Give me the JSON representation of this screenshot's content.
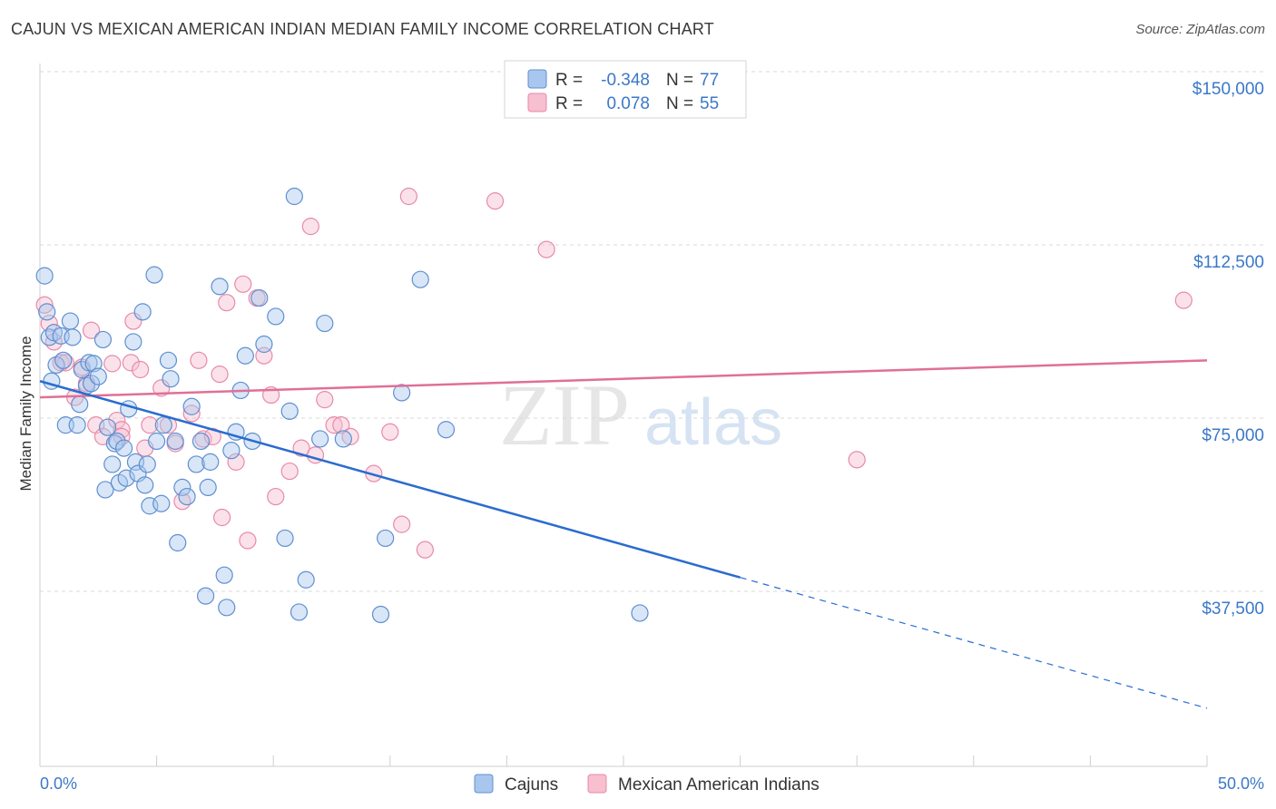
{
  "header": {
    "title": "CAJUN VS MEXICAN AMERICAN INDIAN MEDIAN FAMILY INCOME CORRELATION CHART",
    "source": "Source: ZipAtlas.com"
  },
  "watermark": {
    "zip": "ZIP",
    "atlas": "atlas"
  },
  "legend": {
    "r_label": "R =",
    "n_label": "N =",
    "cajun": {
      "r": "-0.348",
      "n": "77"
    },
    "mexican": {
      "r": "0.078",
      "n": "55"
    }
  },
  "bottom_legend": {
    "cajun": "Cajuns",
    "mexican": "Mexican American Indians"
  },
  "colors": {
    "cajun_fill": "#a9c7ee",
    "cajun_stroke": "#5f8fd0",
    "cajun_line": "#2a6ccf",
    "mexican_fill": "#f7bfd0",
    "mexican_stroke": "#e88aa8",
    "mexican_line": "#e07095",
    "axis_label": "#3b78c9",
    "grid": "#d8d8d8"
  },
  "chart_data": {
    "type": "scatter",
    "title": "CAJUN VS MEXICAN AMERICAN INDIAN MEDIAN FAMILY INCOME CORRELATION CHART",
    "ylabel": "Median Family Income",
    "x_tick_labels": [
      "0.0%",
      "50.0%"
    ],
    "y_tick_labels": [
      "$150,000",
      "$112,500",
      "$75,000",
      "$37,500"
    ],
    "y_ticks": [
      150000,
      112500,
      75000,
      37500
    ],
    "xlim": [
      0,
      50
    ],
    "ylim": [
      0,
      155000
    ],
    "grid": true,
    "series": [
      {
        "name": "Cajuns",
        "points": [
          [
            0.2,
            105800
          ],
          [
            0.3,
            98000
          ],
          [
            0.4,
            92500
          ],
          [
            0.5,
            83000
          ],
          [
            0.6,
            93500
          ],
          [
            0.7,
            86500
          ],
          [
            0.9,
            92800
          ],
          [
            1.0,
            87500
          ],
          [
            1.1,
            73500
          ],
          [
            1.3,
            96000
          ],
          [
            1.4,
            92500
          ],
          [
            1.6,
            73500
          ],
          [
            1.7,
            78000
          ],
          [
            1.8,
            85500
          ],
          [
            2.0,
            82000
          ],
          [
            2.1,
            87000
          ],
          [
            2.2,
            82500
          ],
          [
            2.3,
            86800
          ],
          [
            2.5,
            84000
          ],
          [
            2.7,
            92000
          ],
          [
            2.8,
            59500
          ],
          [
            2.9,
            73000
          ],
          [
            3.1,
            65000
          ],
          [
            3.2,
            69500
          ],
          [
            3.3,
            70000
          ],
          [
            3.4,
            61000
          ],
          [
            3.6,
            68500
          ],
          [
            3.7,
            62000
          ],
          [
            3.8,
            77000
          ],
          [
            4.0,
            91500
          ],
          [
            4.1,
            65500
          ],
          [
            4.2,
            63000
          ],
          [
            4.4,
            98000
          ],
          [
            4.5,
            60500
          ],
          [
            4.6,
            65000
          ],
          [
            4.7,
            56000
          ],
          [
            4.9,
            106000
          ],
          [
            5.0,
            70000
          ],
          [
            5.2,
            56500
          ],
          [
            5.3,
            73500
          ],
          [
            5.5,
            87500
          ],
          [
            5.6,
            83500
          ],
          [
            5.8,
            70000
          ],
          [
            5.9,
            48000
          ],
          [
            6.1,
            60000
          ],
          [
            6.3,
            58000
          ],
          [
            6.5,
            77500
          ],
          [
            6.7,
            65000
          ],
          [
            6.9,
            70000
          ],
          [
            7.1,
            36500
          ],
          [
            7.2,
            60000
          ],
          [
            7.3,
            65500
          ],
          [
            7.7,
            103500
          ],
          [
            7.9,
            41000
          ],
          [
            8.0,
            34000
          ],
          [
            8.2,
            68000
          ],
          [
            8.4,
            72000
          ],
          [
            8.6,
            81000
          ],
          [
            8.8,
            88500
          ],
          [
            9.1,
            70000
          ],
          [
            9.4,
            101000
          ],
          [
            9.6,
            91000
          ],
          [
            10.1,
            97000
          ],
          [
            10.5,
            49000
          ],
          [
            10.7,
            76500
          ],
          [
            10.9,
            123000
          ],
          [
            11.1,
            33000
          ],
          [
            11.4,
            40000
          ],
          [
            12.0,
            70500
          ],
          [
            12.2,
            95500
          ],
          [
            13.0,
            70500
          ],
          [
            14.6,
            32500
          ],
          [
            14.8,
            49000
          ],
          [
            15.5,
            80500
          ],
          [
            16.3,
            105000
          ],
          [
            17.4,
            72500
          ],
          [
            25.7,
            32800
          ]
        ]
      },
      {
        "name": "Mexican American Indians",
        "points": [
          [
            0.2,
            99500
          ],
          [
            0.4,
            95500
          ],
          [
            0.6,
            91500
          ],
          [
            0.9,
            87000
          ],
          [
            1.1,
            87000
          ],
          [
            1.5,
            79500
          ],
          [
            1.8,
            86000
          ],
          [
            2.0,
            82500
          ],
          [
            2.2,
            94000
          ],
          [
            2.4,
            73500
          ],
          [
            2.7,
            71000
          ],
          [
            3.1,
            86800
          ],
          [
            3.3,
            74500
          ],
          [
            3.5,
            72500
          ],
          [
            3.9,
            87000
          ],
          [
            4.0,
            96000
          ],
          [
            4.3,
            85500
          ],
          [
            4.5,
            68500
          ],
          [
            4.7,
            73500
          ],
          [
            5.2,
            81500
          ],
          [
            5.5,
            73500
          ],
          [
            5.8,
            69500
          ],
          [
            6.1,
            57000
          ],
          [
            6.5,
            76000
          ],
          [
            6.8,
            87500
          ],
          [
            7.0,
            70500
          ],
          [
            7.4,
            71000
          ],
          [
            7.7,
            84500
          ],
          [
            7.8,
            53500
          ],
          [
            8.0,
            100000
          ],
          [
            8.4,
            65500
          ],
          [
            8.7,
            104000
          ],
          [
            8.9,
            48500
          ],
          [
            9.3,
            101000
          ],
          [
            9.6,
            88500
          ],
          [
            9.9,
            80000
          ],
          [
            10.1,
            58000
          ],
          [
            10.7,
            63500
          ],
          [
            11.2,
            68500
          ],
          [
            11.6,
            116500
          ],
          [
            11.8,
            67000
          ],
          [
            12.2,
            79000
          ],
          [
            12.6,
            73500
          ],
          [
            12.9,
            73500
          ],
          [
            13.3,
            71000
          ],
          [
            14.3,
            63000
          ],
          [
            15.0,
            72000
          ],
          [
            15.5,
            52000
          ],
          [
            15.8,
            123000
          ],
          [
            16.5,
            46500
          ],
          [
            19.5,
            122000
          ],
          [
            21.7,
            111500
          ],
          [
            35.0,
            66000
          ],
          [
            49.0,
            100500
          ],
          [
            3.5,
            71000
          ]
        ]
      }
    ],
    "trend_lines": [
      {
        "series": "Cajuns",
        "x_solid": [
          0,
          30
        ],
        "y_solid": [
          83000,
          40500
        ],
        "x_dashed": [
          30,
          50
        ],
        "y_dashed": [
          40500,
          12200
        ]
      },
      {
        "series": "Mexican American Indians",
        "x": [
          0,
          50
        ],
        "y": [
          79500,
          87500
        ]
      }
    ]
  }
}
